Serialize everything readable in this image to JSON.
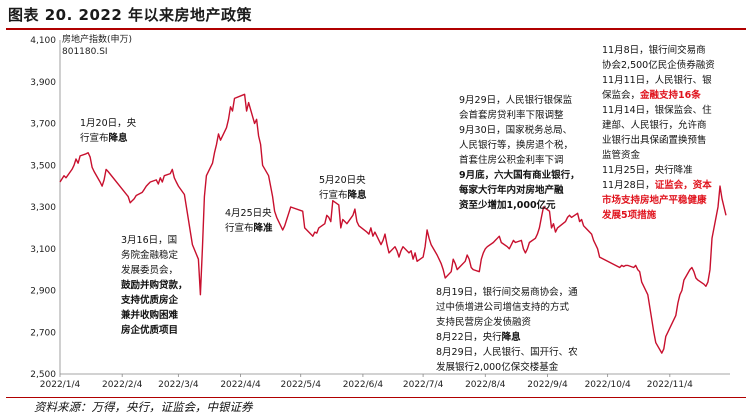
{
  "figure": {
    "title": "图表 20. 2022 年以来房地产政策",
    "source": "资料来源：万得，央行，证监会，中银证券"
  },
  "series_label": {
    "line1": "房地产指数(申万)",
    "line2": "801180.SI"
  },
  "annotations": [
    {
      "id": "jan20",
      "lines": [
        {
          "text": "1月20日，央"
        },
        {
          "text": "行宣布",
          "tail": "降息",
          "tail_style": "hl"
        }
      ]
    },
    {
      "id": "mar16",
      "lines": [
        {
          "text": "3月16日，国"
        },
        {
          "text": "务院金融稳定"
        },
        {
          "text": "发展委员会，"
        },
        {
          "text": "鼓励并购贷款，",
          "style": "hl"
        },
        {
          "text": "支持优质房企",
          "style": "hl"
        },
        {
          "text": "兼并收购困难",
          "style": "hl"
        },
        {
          "text": "房企优质项目",
          "style": "hl"
        }
      ]
    },
    {
      "id": "apr25",
      "lines": [
        {
          "text": "4月25日央"
        },
        {
          "text": "行宣布",
          "tail": "降准",
          "tail_style": "hl"
        }
      ]
    },
    {
      "id": "may20",
      "lines": [
        {
          "text": "5月20日央"
        },
        {
          "text": "行宣布",
          "tail": "降息",
          "tail_style": "hl"
        }
      ]
    },
    {
      "id": "sep",
      "lines": [
        {
          "text": "9月29日，人民银行银保监"
        },
        {
          "text": "会首套房贷利率下限调整"
        },
        {
          "text": "9月30日，国家税务总局、"
        },
        {
          "text": "人民银行等，换房退个税，"
        },
        {
          "text": "首套住房公积金利率下调"
        },
        {
          "text": "9月底，六大国有商业银行，",
          "style": "hl"
        },
        {
          "text": "每家大行年内对房地产融",
          "style": "hl"
        },
        {
          "text": "资至少增加1,000亿元",
          "style": "hl"
        }
      ]
    },
    {
      "id": "aug",
      "lines": [
        {
          "text": "8月19日，银行间交易商协会，通"
        },
        {
          "text": "过中债增进公司增信支持的方式"
        },
        {
          "text": "支持民营房企发债融资"
        },
        {
          "text": "8月22日，央行",
          "tail": "降息",
          "tail_style": "hl"
        },
        {
          "text": "8月29日，人民银行、国开行、农"
        },
        {
          "text": "发展银行2,000亿保交楼基金"
        }
      ]
    },
    {
      "id": "nov",
      "lines": [
        {
          "text": "11月8日，银行间交易商"
        },
        {
          "text": "协会2,500亿民企债券融资"
        },
        {
          "text": "11月11日，人民银行、银"
        },
        {
          "text": "保监会，",
          "tail": "金融支持16条",
          "tail_style": "red"
        },
        {
          "text": "11月14日，银保监会、住"
        },
        {
          "text": "建部、人民银行，允许商"
        },
        {
          "text": "业银行出具保函置换预售"
        },
        {
          "text": "监管资金"
        },
        {
          "text": "11月25日，央行降准"
        },
        {
          "text": "11月28日，",
          "tail": "证监会，资本",
          "tail_style": "red"
        },
        {
          "text": "市场支持房地产平稳健康",
          "style": "red"
        },
        {
          "text": "发展5项措施",
          "style": "red"
        }
      ]
    }
  ],
  "chart_data": {
    "type": "line",
    "title": "2022 年以来房地产政策",
    "xlabel": "",
    "ylabel": "房地产指数(申万)",
    "ylim": [
      2500,
      4100
    ],
    "y_ticks": [
      "4,100",
      "3,900",
      "3,700",
      "3,500",
      "3,300",
      "3,100",
      "2,900",
      "2,700",
      "2,500"
    ],
    "x_ticks": [
      "2022/1/4",
      "2022/2/4",
      "2022/3/4",
      "2022/4/4",
      "2022/5/4",
      "2022/6/4",
      "2022/7/4",
      "2022/8/4",
      "2022/9/4",
      "2022/10/4",
      "2022/11/4"
    ],
    "grid": false,
    "line_color": "#c8102e",
    "series": [
      {
        "name": "房地产指数(申万) 801180.SI",
        "points": [
          [
            "2022-01-04",
            3420
          ],
          [
            "2022-01-06",
            3450
          ],
          [
            "2022-01-07",
            3440
          ],
          [
            "2022-01-10",
            3480
          ],
          [
            "2022-01-11",
            3500
          ],
          [
            "2022-01-12",
            3530
          ],
          [
            "2022-01-13",
            3510
          ],
          [
            "2022-01-14",
            3545
          ],
          [
            "2022-01-17",
            3555
          ],
          [
            "2022-01-18",
            3560
          ],
          [
            "2022-01-19",
            3540
          ],
          [
            "2022-01-20",
            3490
          ],
          [
            "2022-01-21",
            3470
          ],
          [
            "2022-01-24",
            3420
          ],
          [
            "2022-01-25",
            3400
          ],
          [
            "2022-01-26",
            3430
          ],
          [
            "2022-01-27",
            3480
          ],
          [
            "2022-01-28",
            3470
          ],
          [
            "2022-02-07",
            3350
          ],
          [
            "2022-02-08",
            3320
          ],
          [
            "2022-02-09",
            3330
          ],
          [
            "2022-02-10",
            3340
          ],
          [
            "2022-02-11",
            3355
          ],
          [
            "2022-02-14",
            3370
          ],
          [
            "2022-02-15",
            3385
          ],
          [
            "2022-02-16",
            3400
          ],
          [
            "2022-02-17",
            3410
          ],
          [
            "2022-02-18",
            3420
          ],
          [
            "2022-02-21",
            3430
          ],
          [
            "2022-02-22",
            3410
          ],
          [
            "2022-02-23",
            3440
          ],
          [
            "2022-02-24",
            3420
          ],
          [
            "2022-02-25",
            3450
          ],
          [
            "2022-02-28",
            3460
          ],
          [
            "2022-03-01",
            3480
          ],
          [
            "2022-03-02",
            3440
          ],
          [
            "2022-03-03",
            3420
          ],
          [
            "2022-03-04",
            3400
          ],
          [
            "2022-03-07",
            3360
          ],
          [
            "2022-03-08",
            3300
          ],
          [
            "2022-03-09",
            3240
          ],
          [
            "2022-03-10",
            3180
          ],
          [
            "2022-03-11",
            3120
          ],
          [
            "2022-03-14",
            3050
          ],
          [
            "2022-03-15",
            2880
          ],
          [
            "2022-03-16",
            3100
          ],
          [
            "2022-03-17",
            3350
          ],
          [
            "2022-03-18",
            3450
          ],
          [
            "2022-03-21",
            3510
          ],
          [
            "2022-03-22",
            3560
          ],
          [
            "2022-03-23",
            3600
          ],
          [
            "2022-03-24",
            3650
          ],
          [
            "2022-03-25",
            3620
          ],
          [
            "2022-03-28",
            3680
          ],
          [
            "2022-03-29",
            3720
          ],
          [
            "2022-03-30",
            3780
          ],
          [
            "2022-03-31",
            3760
          ],
          [
            "2022-04-01",
            3820
          ],
          [
            "2022-04-06",
            3840
          ],
          [
            "2022-04-07",
            3760
          ],
          [
            "2022-04-08",
            3800
          ],
          [
            "2022-04-11",
            3700
          ],
          [
            "2022-04-12",
            3720
          ],
          [
            "2022-04-13",
            3640
          ],
          [
            "2022-04-14",
            3600
          ],
          [
            "2022-04-15",
            3500
          ],
          [
            "2022-04-18",
            3450
          ],
          [
            "2022-04-19",
            3400
          ],
          [
            "2022-04-20",
            3350
          ],
          [
            "2022-04-21",
            3280
          ],
          [
            "2022-04-22",
            3250
          ],
          [
            "2022-04-25",
            3190
          ],
          [
            "2022-04-26",
            3210
          ],
          [
            "2022-04-27",
            3240
          ],
          [
            "2022-04-28",
            3270
          ],
          [
            "2022-04-29",
            3300
          ],
          [
            "2022-05-05",
            3280
          ],
          [
            "2022-05-06",
            3200
          ],
          [
            "2022-05-09",
            3170
          ],
          [
            "2022-05-10",
            3160
          ],
          [
            "2022-05-11",
            3180
          ],
          [
            "2022-05-12",
            3175
          ],
          [
            "2022-05-13",
            3200
          ],
          [
            "2022-05-16",
            3220
          ],
          [
            "2022-05-17",
            3260
          ],
          [
            "2022-05-18",
            3250
          ],
          [
            "2022-05-19",
            3230
          ],
          [
            "2022-05-20",
            3330
          ],
          [
            "2022-05-23",
            3310
          ],
          [
            "2022-05-24",
            3200
          ],
          [
            "2022-05-25",
            3240
          ],
          [
            "2022-05-26",
            3230
          ],
          [
            "2022-05-27",
            3220
          ],
          [
            "2022-05-30",
            3260
          ],
          [
            "2022-05-31",
            3290
          ],
          [
            "2022-06-01",
            3230
          ],
          [
            "2022-06-02",
            3210
          ],
          [
            "2022-06-06",
            3180
          ],
          [
            "2022-06-07",
            3170
          ],
          [
            "2022-06-08",
            3200
          ],
          [
            "2022-06-09",
            3160
          ],
          [
            "2022-06-10",
            3180
          ],
          [
            "2022-06-13",
            3120
          ],
          [
            "2022-06-14",
            3140
          ],
          [
            "2022-06-15",
            3170
          ],
          [
            "2022-06-16",
            3120
          ],
          [
            "2022-06-17",
            3080
          ],
          [
            "2022-06-20",
            3110
          ],
          [
            "2022-06-21",
            3090
          ],
          [
            "2022-06-22",
            3060
          ],
          [
            "2022-06-23",
            3090
          ],
          [
            "2022-06-24",
            3110
          ],
          [
            "2022-06-27",
            3080
          ],
          [
            "2022-06-28",
            3090
          ],
          [
            "2022-06-29",
            3050
          ],
          [
            "2022-06-30",
            3080
          ],
          [
            "2022-07-01",
            3040
          ],
          [
            "2022-07-04",
            3060
          ],
          [
            "2022-07-05",
            3110
          ],
          [
            "2022-07-06",
            3190
          ],
          [
            "2022-07-07",
            3150
          ],
          [
            "2022-07-08",
            3120
          ],
          [
            "2022-07-11",
            3070
          ],
          [
            "2022-07-12",
            3050
          ],
          [
            "2022-07-13",
            3030
          ],
          [
            "2022-07-14",
            3000
          ],
          [
            "2022-07-15",
            2960
          ],
          [
            "2022-07-18",
            2990
          ],
          [
            "2022-07-19",
            3050
          ],
          [
            "2022-07-20",
            3030
          ],
          [
            "2022-07-21",
            3000
          ],
          [
            "2022-07-22",
            3010
          ],
          [
            "2022-07-25",
            3040
          ],
          [
            "2022-07-26",
            3070
          ],
          [
            "2022-07-27",
            3050
          ],
          [
            "2022-07-28",
            3010
          ],
          [
            "2022-07-29",
            3000
          ],
          [
            "2022-08-01",
            2990
          ],
          [
            "2022-08-02",
            3050
          ],
          [
            "2022-08-03",
            3080
          ],
          [
            "2022-08-04",
            3100
          ],
          [
            "2022-08-05",
            3110
          ],
          [
            "2022-08-08",
            3130
          ],
          [
            "2022-08-09",
            3140
          ],
          [
            "2022-08-10",
            3150
          ],
          [
            "2022-08-11",
            3160
          ],
          [
            "2022-08-12",
            3130
          ],
          [
            "2022-08-15",
            3110
          ],
          [
            "2022-08-16",
            3100
          ],
          [
            "2022-08-17",
            3120
          ],
          [
            "2022-08-18",
            3140
          ],
          [
            "2022-08-19",
            3130
          ],
          [
            "2022-08-22",
            3140
          ],
          [
            "2022-08-23",
            3100
          ],
          [
            "2022-08-24",
            3080
          ],
          [
            "2022-08-25",
            3100
          ],
          [
            "2022-08-26",
            3130
          ],
          [
            "2022-08-29",
            3150
          ],
          [
            "2022-08-30",
            3170
          ],
          [
            "2022-08-31",
            3200
          ],
          [
            "2022-09-01",
            3250
          ],
          [
            "2022-09-02",
            3300
          ],
          [
            "2022-09-05",
            3280
          ],
          [
            "2022-09-06",
            3200
          ],
          [
            "2022-09-07",
            3220
          ],
          [
            "2022-09-08",
            3180
          ],
          [
            "2022-09-09",
            3200
          ],
          [
            "2022-09-13",
            3230
          ],
          [
            "2022-09-14",
            3250
          ],
          [
            "2022-09-15",
            3260
          ],
          [
            "2022-09-16",
            3250
          ],
          [
            "2022-09-19",
            3270
          ],
          [
            "2022-09-20",
            3230
          ],
          [
            "2022-09-21",
            3240
          ],
          [
            "2022-09-22",
            3210
          ],
          [
            "2022-09-23",
            3200
          ],
          [
            "2022-09-26",
            3170
          ],
          [
            "2022-09-27",
            3140
          ],
          [
            "2022-09-28",
            3120
          ],
          [
            "2022-09-29",
            3100
          ],
          [
            "2022-09-30",
            3060
          ],
          [
            "2022-10-10",
            3010
          ],
          [
            "2022-10-11",
            3020
          ],
          [
            "2022-10-12",
            3015
          ],
          [
            "2022-10-13",
            3020
          ],
          [
            "2022-10-14",
            3020
          ],
          [
            "2022-10-17",
            3010
          ],
          [
            "2022-10-18",
            3020
          ],
          [
            "2022-10-19",
            3000
          ],
          [
            "2022-10-20",
            2990
          ],
          [
            "2022-10-21",
            2940
          ],
          [
            "2022-10-24",
            2880
          ],
          [
            "2022-10-25",
            2820
          ],
          [
            "2022-10-26",
            2760
          ],
          [
            "2022-10-27",
            2700
          ],
          [
            "2022-10-28",
            2650
          ],
          [
            "2022-10-31",
            2600
          ],
          [
            "2022-11-01",
            2620
          ],
          [
            "2022-11-02",
            2680
          ],
          [
            "2022-11-03",
            2700
          ],
          [
            "2022-11-04",
            2720
          ],
          [
            "2022-11-07",
            2780
          ],
          [
            "2022-11-08",
            2840
          ],
          [
            "2022-11-09",
            2880
          ],
          [
            "2022-11-10",
            2900
          ],
          [
            "2022-11-11",
            2950
          ],
          [
            "2022-11-14",
            3000
          ],
          [
            "2022-11-15",
            3010
          ],
          [
            "2022-11-16",
            2990
          ],
          [
            "2022-11-17",
            2960
          ],
          [
            "2022-11-18",
            2950
          ],
          [
            "2022-11-21",
            2930
          ],
          [
            "2022-11-22",
            2920
          ],
          [
            "2022-11-23",
            2940
          ],
          [
            "2022-11-24",
            3000
          ],
          [
            "2022-11-25",
            3150
          ],
          [
            "2022-11-28",
            3300
          ],
          [
            "2022-11-29",
            3400
          ],
          [
            "2022-11-30",
            3340
          ],
          [
            "2022-12-01",
            3300
          ],
          [
            "2022-12-02",
            3260
          ]
        ]
      }
    ]
  }
}
